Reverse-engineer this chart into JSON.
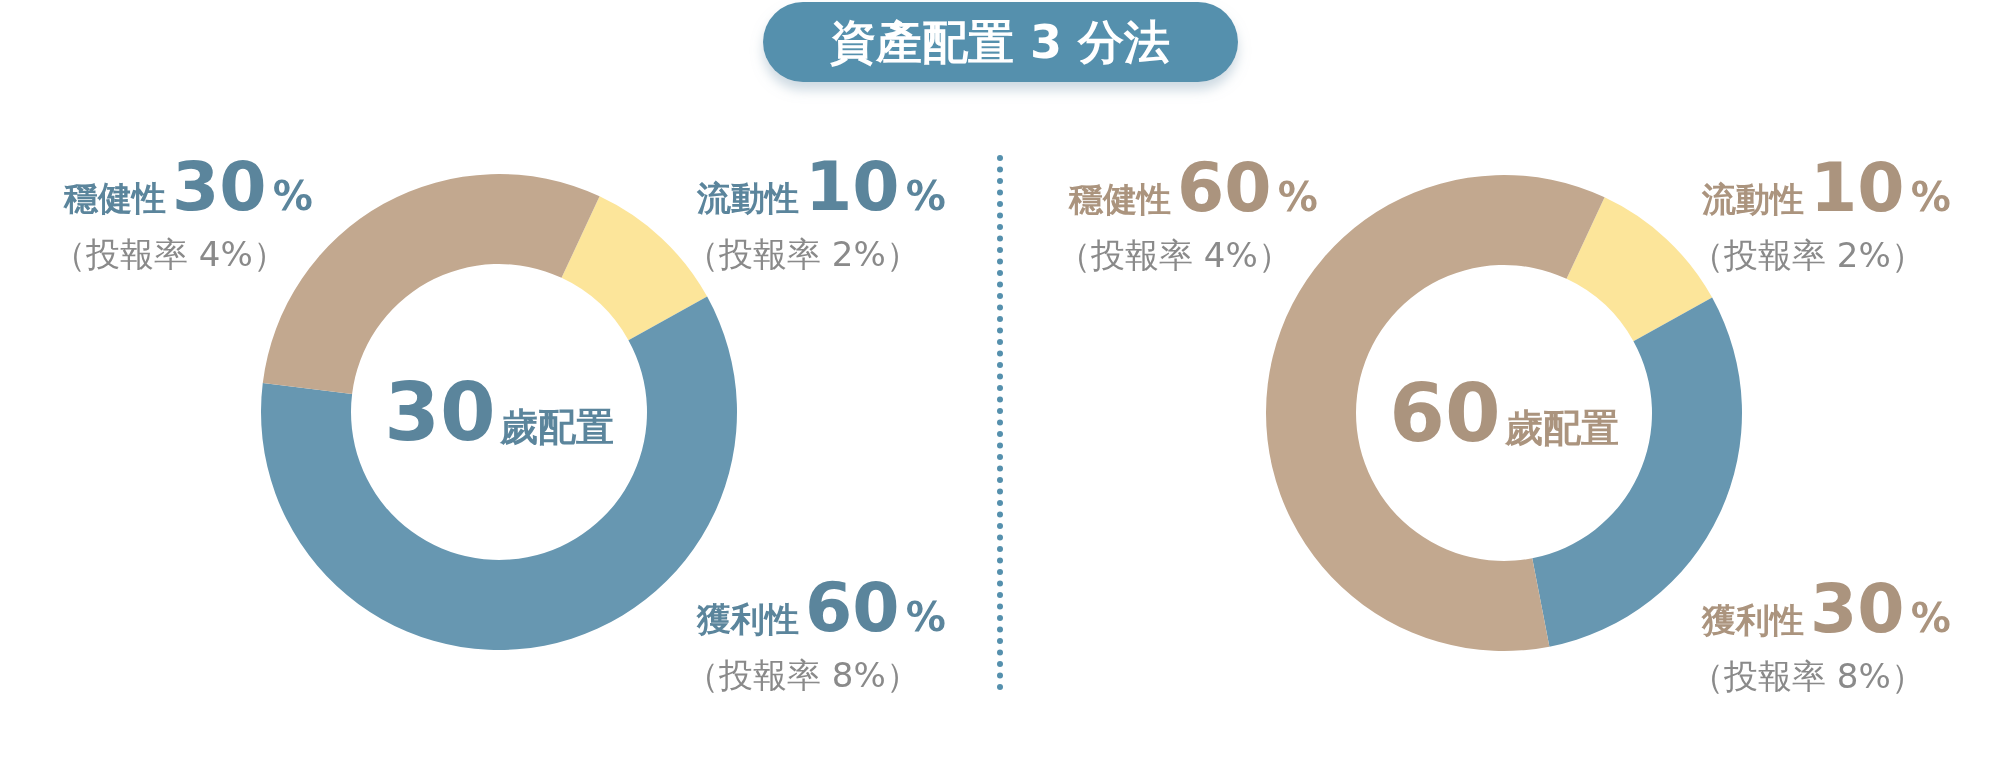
{
  "chart_data": [
    {
      "type": "donut",
      "title": "30歲配置",
      "categories": [
        "流動性",
        "獲利性",
        "穩健性"
      ],
      "values": [
        10,
        60,
        30
      ],
      "colors": [
        "#fce59a",
        "#6797b1",
        "#c2a88f"
      ],
      "value_labels": [
        "10%",
        "60%",
        "30%"
      ],
      "annotations": [
        "資產配置 3 分法",
        {
          "text": "（投報率 2%）",
          "x": "流動性"
        },
        {
          "text": "（投報率 8%）",
          "x": "獲利性"
        },
        {
          "text": "（投報率 4%）",
          "x": "穩健性"
        }
      ]
    },
    {
      "type": "donut",
      "title": "60歲配置",
      "categories": [
        "流動性",
        "獲利性",
        "穩健性"
      ],
      "values": [
        10,
        30,
        60
      ],
      "colors": [
        "#fce59a",
        "#6797b1",
        "#c2a88f"
      ],
      "value_labels": [
        "10%",
        "30%",
        "60%"
      ],
      "annotations": [
        {
          "text": "（投報率 2%）",
          "x": "流動性"
        },
        {
          "text": "（投報率 8%）",
          "x": "獲利性"
        },
        {
          "text": "（投報率 4%）",
          "x": "穩健性"
        }
      ]
    }
  ]
}
